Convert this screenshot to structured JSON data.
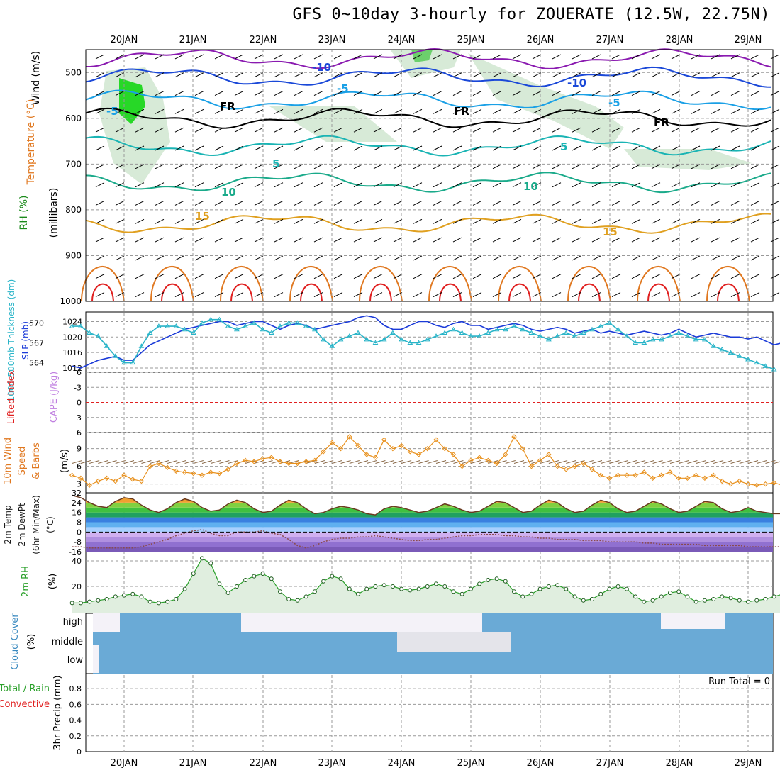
{
  "title": "GFS 0~10day 3-hourly for ZOUERATE (12.5W, 22.75N)",
  "chart_data": [
    {
      "type": "line",
      "panel": "upper-air",
      "x": [
        "20JAN",
        "21JAN",
        "22JAN",
        "23JAN",
        "24JAN",
        "25JAN",
        "26JAN",
        "27JAN",
        "28JAN",
        "29JAN"
      ],
      "ylabels": [
        "Wind (m/s)",
        "Temperature (°C)",
        "RH (%)",
        "(millibars)"
      ],
      "yticks": [
        500,
        600,
        700,
        800,
        900,
        1000
      ],
      "ylim": [
        1000,
        450
      ],
      "contour_labels": [
        "-10",
        "-5",
        "-10",
        "-5",
        "-5",
        "5",
        "5",
        "10",
        "10",
        "15",
        "15",
        "FR",
        "FR",
        "FR"
      ]
    },
    {
      "type": "line",
      "panel": "thickness-slp",
      "ylabels": [
        "1000-500mb Thickness (dm)",
        "SLP (mb)"
      ],
      "yticks_left": [
        564,
        567,
        570
      ],
      "yticks_right": [
        1012,
        1016,
        1020,
        1024
      ],
      "series": [
        {
          "name": "SLP (mb)",
          "color": "#1a3ad8",
          "values": [
            1012.5,
            1012,
            1013,
            1014,
            1014.5,
            1015,
            1014,
            1014,
            1016,
            1018,
            1019,
            1020,
            1021,
            1022,
            1022.5,
            1023,
            1023.5,
            1024,
            1024,
            1023,
            1023.5,
            1024,
            1024,
            1023,
            1022,
            1023,
            1023.5,
            1023,
            1022,
            1022.5,
            1023,
            1023.5,
            1024,
            1025,
            1025.5,
            1025,
            1023,
            1022,
            1022,
            1023,
            1024,
            1024,
            1023,
            1022.5,
            1023.5,
            1024,
            1023,
            1023,
            1022,
            1022.5,
            1023,
            1023.5,
            1023,
            1022,
            1021.5,
            1022,
            1022.5,
            1022,
            1021,
            1021.5,
            1022,
            1021,
            1021.5,
            1021,
            1020.5,
            1021,
            1021.5,
            1021,
            1020.5,
            1021,
            1022,
            1021,
            1020,
            1020.5,
            1021,
            1020.5,
            1020,
            1020,
            1019.5,
            1020,
            1019,
            1018,
            1018.5
          ]
        },
        {
          "name": "1000-500mb Thickness (dm)",
          "color": "#28b4c8",
          "values": [
            569.5,
            569.5,
            568.5,
            568,
            566.5,
            565,
            564,
            564,
            566.5,
            568.5,
            569.5,
            569.5,
            569.5,
            569,
            568.5,
            570,
            570.5,
            570.5,
            569.5,
            569,
            569.5,
            570,
            569,
            568.5,
            569.5,
            570,
            570,
            569.5,
            569,
            567.5,
            566.5,
            567.5,
            568,
            568.5,
            567.5,
            567,
            567.5,
            568.5,
            567.5,
            567,
            567,
            567.5,
            568,
            568.5,
            569,
            568.5,
            568,
            568,
            568.5,
            569,
            569,
            569.5,
            569,
            568.5,
            568,
            567.5,
            568,
            568.5,
            568,
            568.5,
            569,
            569.5,
            570,
            569,
            568,
            567,
            567,
            567.5,
            567.5,
            568,
            568.5,
            568,
            567.5,
            567.5,
            566.5,
            566,
            565.5,
            565,
            564.5,
            564,
            563.5,
            563
          ]
        }
      ]
    },
    {
      "type": "line",
      "panel": "cape-li",
      "ylabels": [
        "Lifted Index",
        "CAPE (J/kg)"
      ],
      "yticks": [
        -6,
        -3,
        0,
        3,
        6
      ]
    },
    {
      "type": "line",
      "panel": "10m-wind",
      "ylabels": [
        "10m Wind",
        "Speed",
        "& Barbs",
        "(m/s)"
      ],
      "yticks": [
        3,
        6,
        9
      ],
      "series": [
        {
          "name": "Speed",
          "color": "#e8901c",
          "values": [
            4.5,
            4,
            2.8,
            3.5,
            4,
            3.5,
            4.5,
            3.8,
            3.5,
            6,
            6.5,
            5.8,
            5.2,
            5,
            4.8,
            4.5,
            5,
            4.8,
            5.5,
            6.5,
            7,
            6.8,
            7.3,
            7.5,
            6.8,
            6.5,
            6.5,
            6.8,
            7,
            8.5,
            10,
            9,
            11,
            9.5,
            8,
            7.5,
            10.5,
            9,
            9.5,
            8.5,
            8,
            9,
            10.5,
            9,
            8,
            6,
            7,
            7.5,
            7,
            6.5,
            8,
            11,
            9,
            6,
            7,
            8,
            6,
            5.5,
            6,
            6.5,
            5.5,
            4.5,
            4,
            4.5,
            4.5,
            4.5,
            5,
            4,
            4.5,
            5,
            4,
            4,
            4.5,
            4,
            4.5,
            3.5,
            3,
            3.5,
            3,
            2.8,
            3,
            3.2,
            2.8
          ]
        }
      ]
    },
    {
      "type": "area",
      "panel": "2m-temp",
      "ylabels": [
        "2m Temp",
        "2m DewPt",
        "(6hr Min/Max)",
        "(°C)"
      ],
      "yticks": [
        -16,
        -8,
        0,
        8,
        16,
        24,
        32
      ],
      "series": [
        {
          "name": "2m Temp",
          "values": [
            30,
            28,
            24,
            21,
            20,
            25,
            28,
            27,
            22,
            18,
            16,
            19,
            24,
            27,
            25,
            20,
            17,
            18,
            23,
            26,
            24,
            19,
            16,
            17,
            22,
            26,
            24,
            19,
            15,
            16,
            19,
            21,
            20,
            18,
            15,
            14,
            19,
            21,
            20,
            18,
            16,
            17,
            20,
            23,
            21,
            18,
            16,
            17,
            21,
            25,
            24,
            20,
            16,
            17,
            22,
            26,
            24,
            19,
            16,
            17,
            22,
            26,
            24,
            19,
            16,
            17,
            21,
            25,
            23,
            19,
            16,
            17,
            21,
            25,
            24,
            19,
            16,
            17,
            20,
            17,
            16,
            15,
            15
          ]
        },
        {
          "name": "2m DewPt",
          "values": [
            -12,
            -12,
            -13,
            -13,
            -13,
            -13,
            -13,
            -13,
            -12,
            -10,
            -8,
            -6,
            -3,
            -1,
            1,
            2,
            -1,
            -3,
            -3,
            0,
            0,
            0,
            1,
            -1,
            -2,
            -6,
            -11,
            -13,
            -11,
            -8,
            -6,
            -5,
            -5,
            -4,
            -4,
            -3,
            -4,
            -5,
            -6,
            -7,
            -7,
            -6,
            -6,
            -5,
            -4,
            -3,
            -3,
            -2,
            -2,
            -2,
            -3,
            -3,
            -4,
            -4,
            -5,
            -5,
            -6,
            -6,
            -6,
            -7,
            -7,
            -7,
            -8,
            -8,
            -8,
            -8,
            -9,
            -9,
            -10,
            -10,
            -10,
            -10,
            -10,
            -11,
            -11,
            -11,
            -11,
            -11,
            -12,
            -12,
            -12,
            -12,
            -12
          ]
        }
      ]
    },
    {
      "type": "area",
      "panel": "2m-rh",
      "ylabels": [
        "2m RH",
        "(%)"
      ],
      "yticks": [
        20,
        40
      ],
      "series": [
        {
          "name": "2m RH",
          "color": "#2aa02a",
          "values": [
            7,
            7,
            8,
            9,
            10,
            12,
            13,
            14,
            12,
            8,
            7,
            8,
            10,
            18,
            30,
            42,
            38,
            22,
            15,
            20,
            25,
            28,
            30,
            26,
            16,
            10,
            9,
            12,
            16,
            24,
            28,
            26,
            18,
            14,
            18,
            20,
            21,
            20,
            18,
            17,
            18,
            20,
            22,
            20,
            16,
            14,
            18,
            22,
            25,
            26,
            24,
            16,
            12,
            14,
            18,
            20,
            21,
            18,
            12,
            9,
            10,
            14,
            18,
            20,
            18,
            12,
            8,
            9,
            12,
            15,
            16,
            12,
            8,
            9,
            10,
            12,
            11,
            9,
            8,
            9,
            10,
            12,
            14
          ]
        }
      ]
    },
    {
      "type": "area",
      "panel": "cloud-cover",
      "ylabels": [
        "Cloud Cover",
        "(%)"
      ],
      "yticks": [
        "low",
        "middle",
        "high"
      ]
    },
    {
      "type": "bar",
      "panel": "precip",
      "ylabels": [
        "3hr Precip (mm)",
        "Total / Rain",
        "Convective"
      ],
      "yticks": [
        0,
        0.2,
        0.4,
        0.6,
        0.8
      ],
      "annotation": "Run Total = 0"
    }
  ]
}
